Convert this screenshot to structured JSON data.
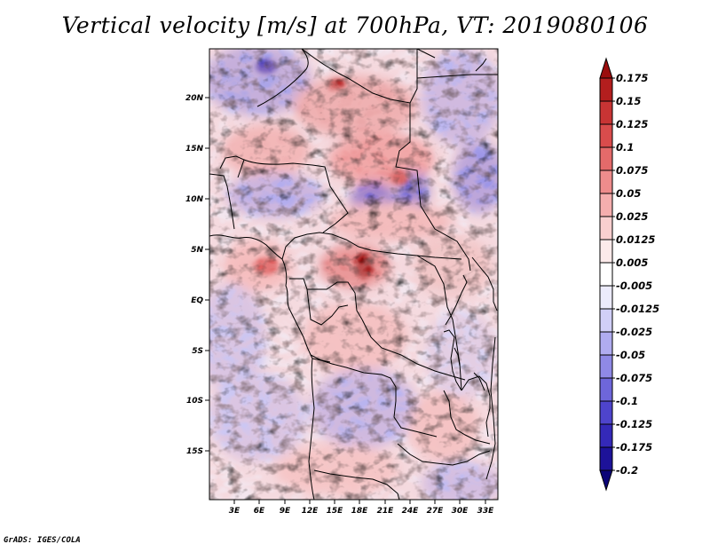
{
  "title": "Vertical velocity [m/s] at 700hPa, VT: 2019080106",
  "footer": "GrADS: IGES/COLA",
  "map": {
    "lon_labels": [
      "3E",
      "6E",
      "9E",
      "12E",
      "15E",
      "18E",
      "21E",
      "24E",
      "27E",
      "30E",
      "33E"
    ],
    "lat_labels": [
      "20N",
      "15N",
      "10N",
      "5N",
      "EQ",
      "5S",
      "10S",
      "15S"
    ]
  },
  "colorbar": {
    "labels": [
      "0.175",
      "0.15",
      "0.125",
      "0.1",
      "0.075",
      "0.05",
      "0.025",
      "0.0125",
      "0.005",
      "-0.005",
      "-0.0125",
      "-0.025",
      "-0.05",
      "-0.075",
      "-0.1",
      "-0.125",
      "-0.175",
      "-0.2"
    ],
    "colors": [
      "#9b0d0d",
      "#b31e1e",
      "#c83434",
      "#d94c4c",
      "#e46a6a",
      "#ee8c8c",
      "#f5aeae",
      "#f9cfcf",
      "#fceaea",
      "#ffffff",
      "#ecebfc",
      "#d1cff7",
      "#b0acf0",
      "#8f89e6",
      "#6e66da",
      "#4e44cc",
      "#3429b8",
      "#1d1299",
      "#0b0477"
    ]
  }
}
